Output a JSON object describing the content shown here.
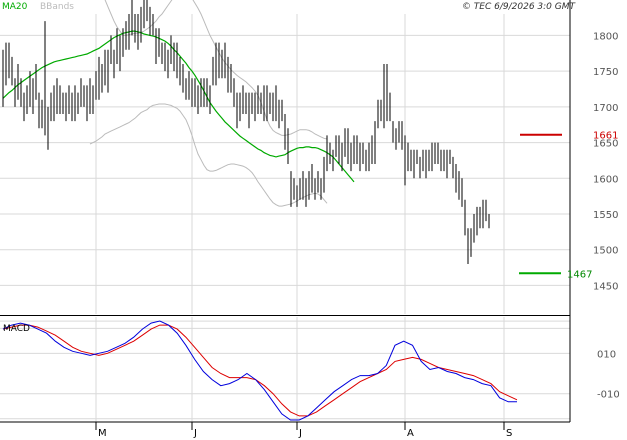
{
  "header": {
    "legend_ma20": "MA20",
    "legend_bbands": "BBands",
    "timestamp": "© TEC 6/9/2026 3:0 GMT"
  },
  "colors": {
    "grid": "#d9d9d9",
    "frame": "#000000",
    "bar": "#000000",
    "ma20": "#00aa00",
    "bbands": "#bbbbbb",
    "macd": "#0000dd",
    "signal": "#dd0000",
    "resistance": "#cc0000",
    "support": "#00aa00"
  },
  "chart_data": [
    {
      "type": "ohlc",
      "title": "",
      "ylim": [
        1410,
        1830
      ],
      "y_ticks": [
        1450,
        1500,
        1550,
        1600,
        1650,
        1700,
        1750,
        1800
      ],
      "x_ticks": [
        "M",
        "J",
        "J",
        "A",
        "S"
      ],
      "x_tick_index": [
        31,
        63,
        98,
        134,
        167
      ],
      "grid": true,
      "bars": [
        [
          1700,
          1780
        ],
        [
          1730,
          1790
        ],
        [
          1740,
          1790
        ],
        [
          1730,
          1770
        ],
        [
          1700,
          1740
        ],
        [
          1710,
          1760
        ],
        [
          1700,
          1740
        ],
        [
          1680,
          1720
        ],
        [
          1690,
          1730
        ],
        [
          1700,
          1750
        ],
        [
          1690,
          1740
        ],
        [
          1710,
          1760
        ],
        [
          1670,
          1720
        ],
        [
          1670,
          1710
        ],
        [
          1660,
          1820
        ],
        [
          1640,
          1700
        ],
        [
          1680,
          1720
        ],
        [
          1680,
          1730
        ],
        [
          1690,
          1740
        ],
        [
          1690,
          1730
        ],
        [
          1690,
          1720
        ],
        [
          1680,
          1720
        ],
        [
          1690,
          1730
        ],
        [
          1680,
          1720
        ],
        [
          1680,
          1730
        ],
        [
          1690,
          1720
        ],
        [
          1700,
          1740
        ],
        [
          1700,
          1730
        ],
        [
          1680,
          1730
        ],
        [
          1690,
          1740
        ],
        [
          1690,
          1730
        ],
        [
          1710,
          1750
        ],
        [
          1710,
          1770
        ],
        [
          1720,
          1760
        ],
        [
          1730,
          1780
        ],
        [
          1720,
          1780
        ],
        [
          1760,
          1800
        ],
        [
          1740,
          1780
        ],
        [
          1760,
          1810
        ],
        [
          1750,
          1800
        ],
        [
          1770,
          1810
        ],
        [
          1780,
          1820
        ],
        [
          1780,
          1830
        ],
        [
          1800,
          1850
        ],
        [
          1790,
          1830
        ],
        [
          1780,
          1830
        ],
        [
          1790,
          1840
        ],
        [
          1810,
          1860
        ],
        [
          1820,
          1850
        ],
        [
          1800,
          1840
        ],
        [
          1800,
          1830
        ],
        [
          1760,
          1810
        ],
        [
          1770,
          1810
        ],
        [
          1760,
          1790
        ],
        [
          1750,
          1790
        ],
        [
          1740,
          1780
        ],
        [
          1760,
          1800
        ],
        [
          1750,
          1790
        ],
        [
          1740,
          1790
        ],
        [
          1730,
          1770
        ],
        [
          1720,
          1760
        ],
        [
          1710,
          1740
        ],
        [
          1710,
          1750
        ],
        [
          1700,
          1740
        ],
        [
          1700,
          1740
        ],
        [
          1690,
          1730
        ],
        [
          1700,
          1740
        ],
        [
          1700,
          1740
        ],
        [
          1700,
          1740
        ],
        [
          1690,
          1730
        ],
        [
          1730,
          1770
        ],
        [
          1730,
          1790
        ],
        [
          1740,
          1790
        ],
        [
          1740,
          1780
        ],
        [
          1740,
          1790
        ],
        [
          1720,
          1770
        ],
        [
          1720,
          1760
        ],
        [
          1700,
          1740
        ],
        [
          1670,
          1720
        ],
        [
          1680,
          1720
        ],
        [
          1690,
          1730
        ],
        [
          1690,
          1720
        ],
        [
          1670,
          1720
        ],
        [
          1690,
          1720
        ],
        [
          1680,
          1720
        ],
        [
          1690,
          1730
        ],
        [
          1690,
          1720
        ],
        [
          1680,
          1730
        ],
        [
          1680,
          1730
        ],
        [
          1690,
          1720
        ],
        [
          1680,
          1720
        ],
        [
          1680,
          1730
        ],
        [
          1670,
          1710
        ],
        [
          1680,
          1710
        ],
        [
          1640,
          1690
        ],
        [
          1620,
          1670
        ],
        [
          1560,
          1610
        ],
        [
          1570,
          1600
        ],
        [
          1560,
          1590
        ],
        [
          1570,
          1600
        ],
        [
          1570,
          1610
        ],
        [
          1560,
          1600
        ],
        [
          1570,
          1610
        ],
        [
          1580,
          1620
        ],
        [
          1570,
          1600
        ],
        [
          1580,
          1610
        ],
        [
          1570,
          1600
        ],
        [
          1580,
          1630
        ],
        [
          1610,
          1660
        ],
        [
          1620,
          1650
        ],
        [
          1610,
          1640
        ],
        [
          1630,
          1660
        ],
        [
          1620,
          1660
        ],
        [
          1610,
          1650
        ],
        [
          1630,
          1670
        ],
        [
          1620,
          1670
        ],
        [
          1610,
          1650
        ],
        [
          1620,
          1660
        ],
        [
          1620,
          1660
        ],
        [
          1610,
          1650
        ],
        [
          1620,
          1650
        ],
        [
          1610,
          1640
        ],
        [
          1610,
          1650
        ],
        [
          1620,
          1660
        ],
        [
          1620,
          1680
        ],
        [
          1670,
          1710
        ],
        [
          1680,
          1710
        ],
        [
          1670,
          1760
        ],
        [
          1680,
          1760
        ],
        [
          1680,
          1720
        ],
        [
          1650,
          1680
        ],
        [
          1640,
          1670
        ],
        [
          1650,
          1680
        ],
        [
          1640,
          1680
        ],
        [
          1590,
          1660
        ],
        [
          1610,
          1650
        ],
        [
          1610,
          1640
        ],
        [
          1600,
          1640
        ],
        [
          1620,
          1640
        ],
        [
          1600,
          1630
        ],
        [
          1610,
          1640
        ],
        [
          1600,
          1640
        ],
        [
          1610,
          1640
        ],
        [
          1610,
          1650
        ],
        [
          1620,
          1650
        ],
        [
          1620,
          1650
        ],
        [
          1610,
          1640
        ],
        [
          1610,
          1640
        ],
        [
          1600,
          1640
        ],
        [
          1620,
          1640
        ],
        [
          1600,
          1630
        ],
        [
          1580,
          1620
        ],
        [
          1570,
          1610
        ],
        [
          1560,
          1600
        ],
        [
          1520,
          1570
        ],
        [
          1480,
          1530
        ],
        [
          1490,
          1530
        ],
        [
          1510,
          1550
        ],
        [
          1520,
          1560
        ],
        [
          1530,
          1560
        ],
        [
          1530,
          1570
        ],
        [
          1540,
          1570
        ],
        [
          1530,
          1550
        ]
      ],
      "ma20": [
        1712,
        1716,
        1720,
        1723,
        1727,
        1731,
        1734,
        1737,
        1740,
        1743,
        1746,
        1749,
        1752,
        1755,
        1757,
        1759,
        1761,
        1763,
        1764,
        1765,
        1766,
        1767,
        1768,
        1769,
        1770,
        1771,
        1772,
        1773,
        1774,
        1776,
        1778,
        1780,
        1782,
        1785,
        1788,
        1791,
        1794,
        1797,
        1799,
        1801,
        1803,
        1804,
        1805,
        1806,
        1806,
        1805,
        1804,
        1802,
        1801,
        1800,
        1799,
        1798,
        1796,
        1794,
        1792,
        1789,
        1785,
        1780,
        1776,
        1771,
        1766,
        1761,
        1755,
        1750,
        1744,
        1737,
        1730,
        1722,
        1714,
        1706,
        1700,
        1694,
        1689,
        1684,
        1679,
        1675,
        1671,
        1667,
        1663,
        1659,
        1656,
        1653,
        1650,
        1647,
        1644,
        1641,
        1639,
        1636,
        1634,
        1632,
        1631,
        1630,
        1631,
        1632,
        1633,
        1636,
        1638,
        1640,
        1642,
        1643,
        1643,
        1644,
        1644,
        1643,
        1643,
        1642,
        1640,
        1638,
        1636,
        1633,
        1630,
        1625,
        1620,
        1615,
        1610,
        1605,
        1600,
        1595
      ],
      "bb_upper": [
        1880,
        1876,
        1872,
        1866,
        1858,
        1850,
        1840,
        1830,
        1820,
        1812,
        1806,
        1800,
        1800,
        1801,
        1802,
        1803,
        1803,
        1804,
        1806,
        1809,
        1812,
        1816,
        1820,
        1826,
        1830,
        1836,
        1842,
        1848,
        1854,
        1860,
        1864,
        1864,
        1863,
        1858,
        1852,
        1845,
        1838,
        1830,
        1820,
        1810,
        1800,
        1792,
        1784,
        1776,
        1768,
        1762,
        1757,
        1752,
        1748,
        1744,
        1741,
        1738,
        1735,
        1731,
        1727,
        1722,
        1716,
        1706,
        1694,
        1682,
        1673,
        1667,
        1664,
        1662,
        1660,
        1660,
        1661,
        1662,
        1664,
        1666,
        1668,
        1668,
        1668,
        1667,
        1665,
        1662,
        1660,
        1658,
        1656,
        1655
      ],
      "bb_lower": [
        1648,
        1650,
        1652,
        1655,
        1658,
        1662,
        1664,
        1666,
        1668,
        1670,
        1672,
        1674,
        1676,
        1678,
        1681,
        1684,
        1688,
        1692,
        1694,
        1696,
        1700,
        1702,
        1703,
        1704,
        1704,
        1704,
        1703,
        1702,
        1700,
        1698,
        1694,
        1688,
        1682,
        1672,
        1660,
        1646,
        1634,
        1626,
        1618,
        1612,
        1610,
        1610,
        1611,
        1613,
        1615,
        1617,
        1619,
        1620,
        1620,
        1619,
        1618,
        1617,
        1615,
        1612,
        1608,
        1602,
        1595,
        1589,
        1583,
        1577,
        1571,
        1566,
        1563,
        1561,
        1561,
        1562,
        1563,
        1564,
        1566,
        1568,
        1571,
        1573,
        1575,
        1577,
        1578,
        1579,
        1578,
        1575,
        1570,
        1565
      ],
      "ma20_start": 0,
      "bb_start": 29,
      "levels": [
        {
          "name": "resistance",
          "value": 1661,
          "label": "1661"
        },
        {
          "name": "support",
          "value": 1467,
          "label": "1467"
        }
      ]
    },
    {
      "type": "line",
      "title": "MACD",
      "ylim": [
        -24,
        28
      ],
      "y_ticks": [
        -10,
        10
      ],
      "y_tick_labels": [
        "-010",
        "010"
      ],
      "series": [
        {
          "name": "MACD",
          "values": [
            22,
            24,
            25,
            24,
            22,
            20,
            16,
            13,
            11,
            10,
            9,
            10,
            11,
            13,
            15,
            18,
            22,
            25,
            26,
            24,
            20,
            14,
            7,
            1,
            -3,
            -6,
            -5,
            -3,
            0,
            -3,
            -8,
            -14,
            -20,
            -23,
            -23,
            -21,
            -17,
            -13,
            -9,
            -6,
            -3,
            -1,
            -1,
            0,
            4,
            14,
            16,
            14,
            6,
            2,
            3,
            1,
            0,
            -2,
            -3,
            -5,
            -6,
            -12,
            -14,
            -14
          ]
        },
        {
          "name": "Signal",
          "values": [
            22,
            23,
            24,
            24,
            23,
            21,
            19,
            16,
            13,
            11,
            10,
            9,
            10,
            12,
            14,
            16,
            19,
            22,
            24,
            24,
            22,
            18,
            13,
            8,
            3,
            0,
            -2,
            -2,
            -2,
            -3,
            -6,
            -10,
            -15,
            -19,
            -21,
            -21,
            -19,
            -16,
            -13,
            -10,
            -7,
            -4,
            -2,
            0,
            2,
            6,
            7,
            8,
            7,
            5,
            3,
            2,
            1,
            0,
            -1,
            -3,
            -5,
            -9,
            -11,
            -13
          ]
        }
      ]
    }
  ]
}
